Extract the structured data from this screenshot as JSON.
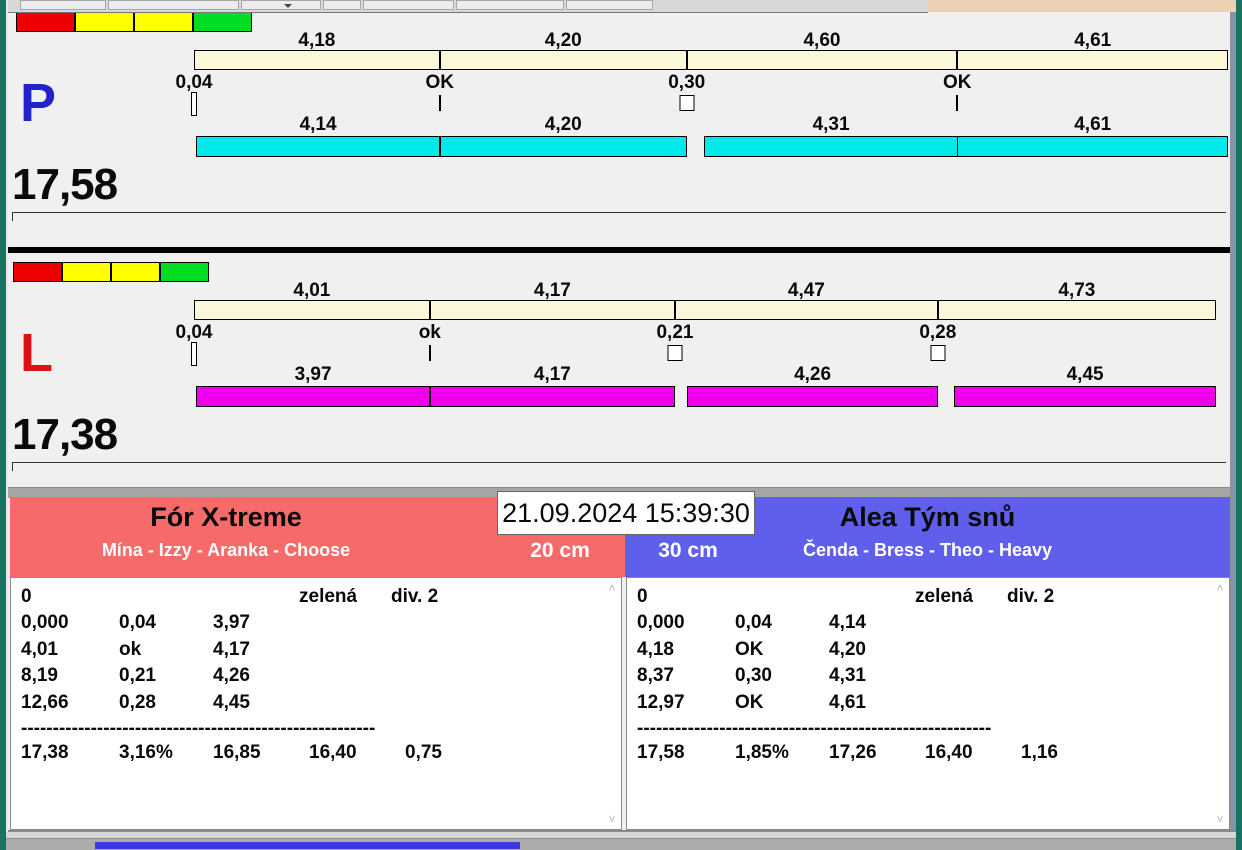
{
  "traffic_light": {
    "squares": [
      {
        "name": "red",
        "color": "#ee0000"
      },
      {
        "name": "yellow-1",
        "color": "#ffff00"
      },
      {
        "name": "yellow-2",
        "color": "#ffff00"
      },
      {
        "name": "green",
        "color": "#00dd22"
      }
    ]
  },
  "lanes": [
    {
      "letter": "P",
      "letter_color": "#2222cc",
      "total": "17,58",
      "bar_color": "#00e8e8",
      "top_segments": [
        {
          "label": "4,18",
          "value": 4.18
        },
        {
          "label": "4,20",
          "value": 4.2
        },
        {
          "label": "4,60",
          "value": 4.6
        },
        {
          "label": "4,61",
          "value": 4.61
        }
      ],
      "markers": [
        {
          "label": "0,04",
          "style": "slot"
        },
        {
          "label": "OK",
          "style": "tick"
        },
        {
          "label": "0,30",
          "style": "box"
        },
        {
          "label": "OK",
          "style": "tick"
        }
      ],
      "bottom_segments": [
        {
          "label": "4,14",
          "value": 4.14
        },
        {
          "label": "4,20",
          "value": 4.2
        },
        {
          "label": "4,31",
          "value": 4.31
        },
        {
          "label": "4,61",
          "value": 4.61
        }
      ]
    },
    {
      "letter": "L",
      "letter_color": "#dd1111",
      "total": "17,38",
      "bar_color": "#ee00ee",
      "top_segments": [
        {
          "label": "4,01",
          "value": 4.01
        },
        {
          "label": "4,17",
          "value": 4.17
        },
        {
          "label": "4,47",
          "value": 4.47
        },
        {
          "label": "4,73",
          "value": 4.73
        }
      ],
      "markers": [
        {
          "label": "0,04",
          "style": "slot"
        },
        {
          "label": "ok",
          "style": "tick"
        },
        {
          "label": "0,21",
          "style": "box"
        },
        {
          "label": "0,28",
          "style": "box"
        }
      ],
      "bottom_segments": [
        {
          "label": "3,97",
          "value": 3.97
        },
        {
          "label": "4,17",
          "value": 4.17
        },
        {
          "label": "4,26",
          "value": 4.26
        },
        {
          "label": "4,45",
          "value": 4.45
        }
      ]
    }
  ],
  "timestamp": "21.09.2024 15:39:30",
  "teams": [
    {
      "name": "Fór X-treme",
      "members": "Mína - Izzy - Aranka - Choose",
      "height_label": "20 cm",
      "header_color": "#f76a6a",
      "table": {
        "row_top": [
          "0",
          "zelená",
          "div. 2"
        ],
        "splits": [
          [
            "0,000",
            "0,04",
            "3,97"
          ],
          [
            "4,01",
            "ok",
            "4,17"
          ],
          [
            "8,19",
            "0,21",
            "4,26"
          ],
          [
            "12,66",
            "0,28",
            "4,45"
          ]
        ],
        "separator": "--------------------------------------------------------",
        "summary": [
          "17,38",
          "3,16%",
          "16,85",
          "16,40",
          "0,75"
        ]
      }
    },
    {
      "name": "Alea Tým snů",
      "members": "Čenda - Bress - Theo - Heavy",
      "height_label": "30 cm",
      "header_color": "#5f5fec",
      "table": {
        "row_top": [
          "0",
          "zelená",
          "div. 2"
        ],
        "splits": [
          [
            "0,000",
            "0,04",
            "4,14"
          ],
          [
            "4,18",
            "OK",
            "4,20"
          ],
          [
            "8,37",
            "0,30",
            "4,31"
          ],
          [
            "12,97",
            "OK",
            "4,61"
          ]
        ],
        "separator": "--------------------------------------------------------",
        "summary": [
          "17,58",
          "1,85%",
          "17,26",
          "16,40",
          "1,16"
        ]
      }
    }
  ],
  "status": {
    "progress_color": "#3a3ae0"
  }
}
